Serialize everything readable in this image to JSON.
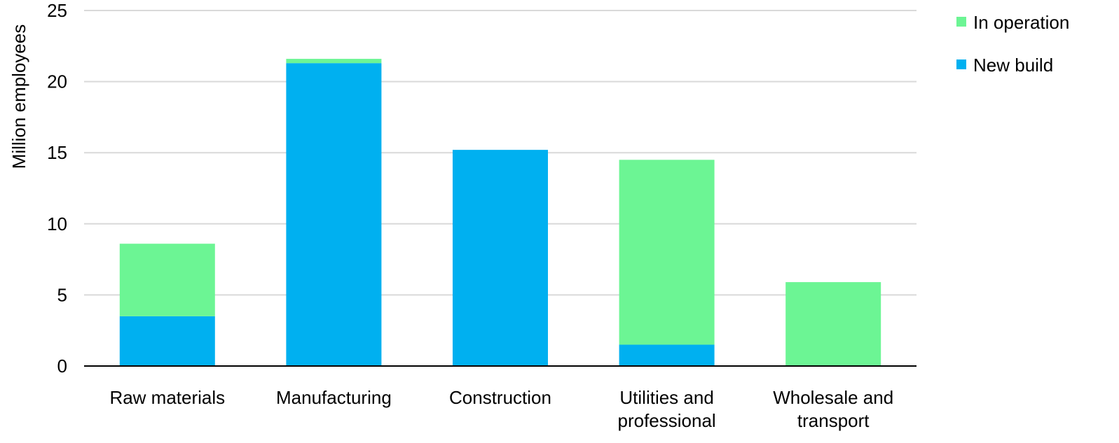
{
  "chart_data": {
    "type": "bar",
    "stacked": true,
    "title": "",
    "xlabel": "",
    "ylabel": "Million employees",
    "ylim": [
      0,
      25
    ],
    "yticks": [
      "0",
      "5",
      "10",
      "15",
      "20",
      "25"
    ],
    "grid": true,
    "legend_position": "top-right",
    "categories": [
      [
        "Raw materials"
      ],
      [
        "Manufacturing"
      ],
      [
        "Construction"
      ],
      [
        "Utilities and",
        "professional"
      ],
      [
        "Wholesale and",
        "transport"
      ]
    ],
    "series": [
      {
        "name": "New build",
        "color": "#00b0f0",
        "values": [
          3.5,
          21.3,
          15.2,
          1.5,
          0
        ]
      },
      {
        "name": "In operation",
        "color": "#6cf594",
        "values": [
          5.1,
          0.3,
          0,
          13.0,
          5.9
        ]
      }
    ],
    "legend_order": [
      "In operation",
      "New build"
    ]
  }
}
